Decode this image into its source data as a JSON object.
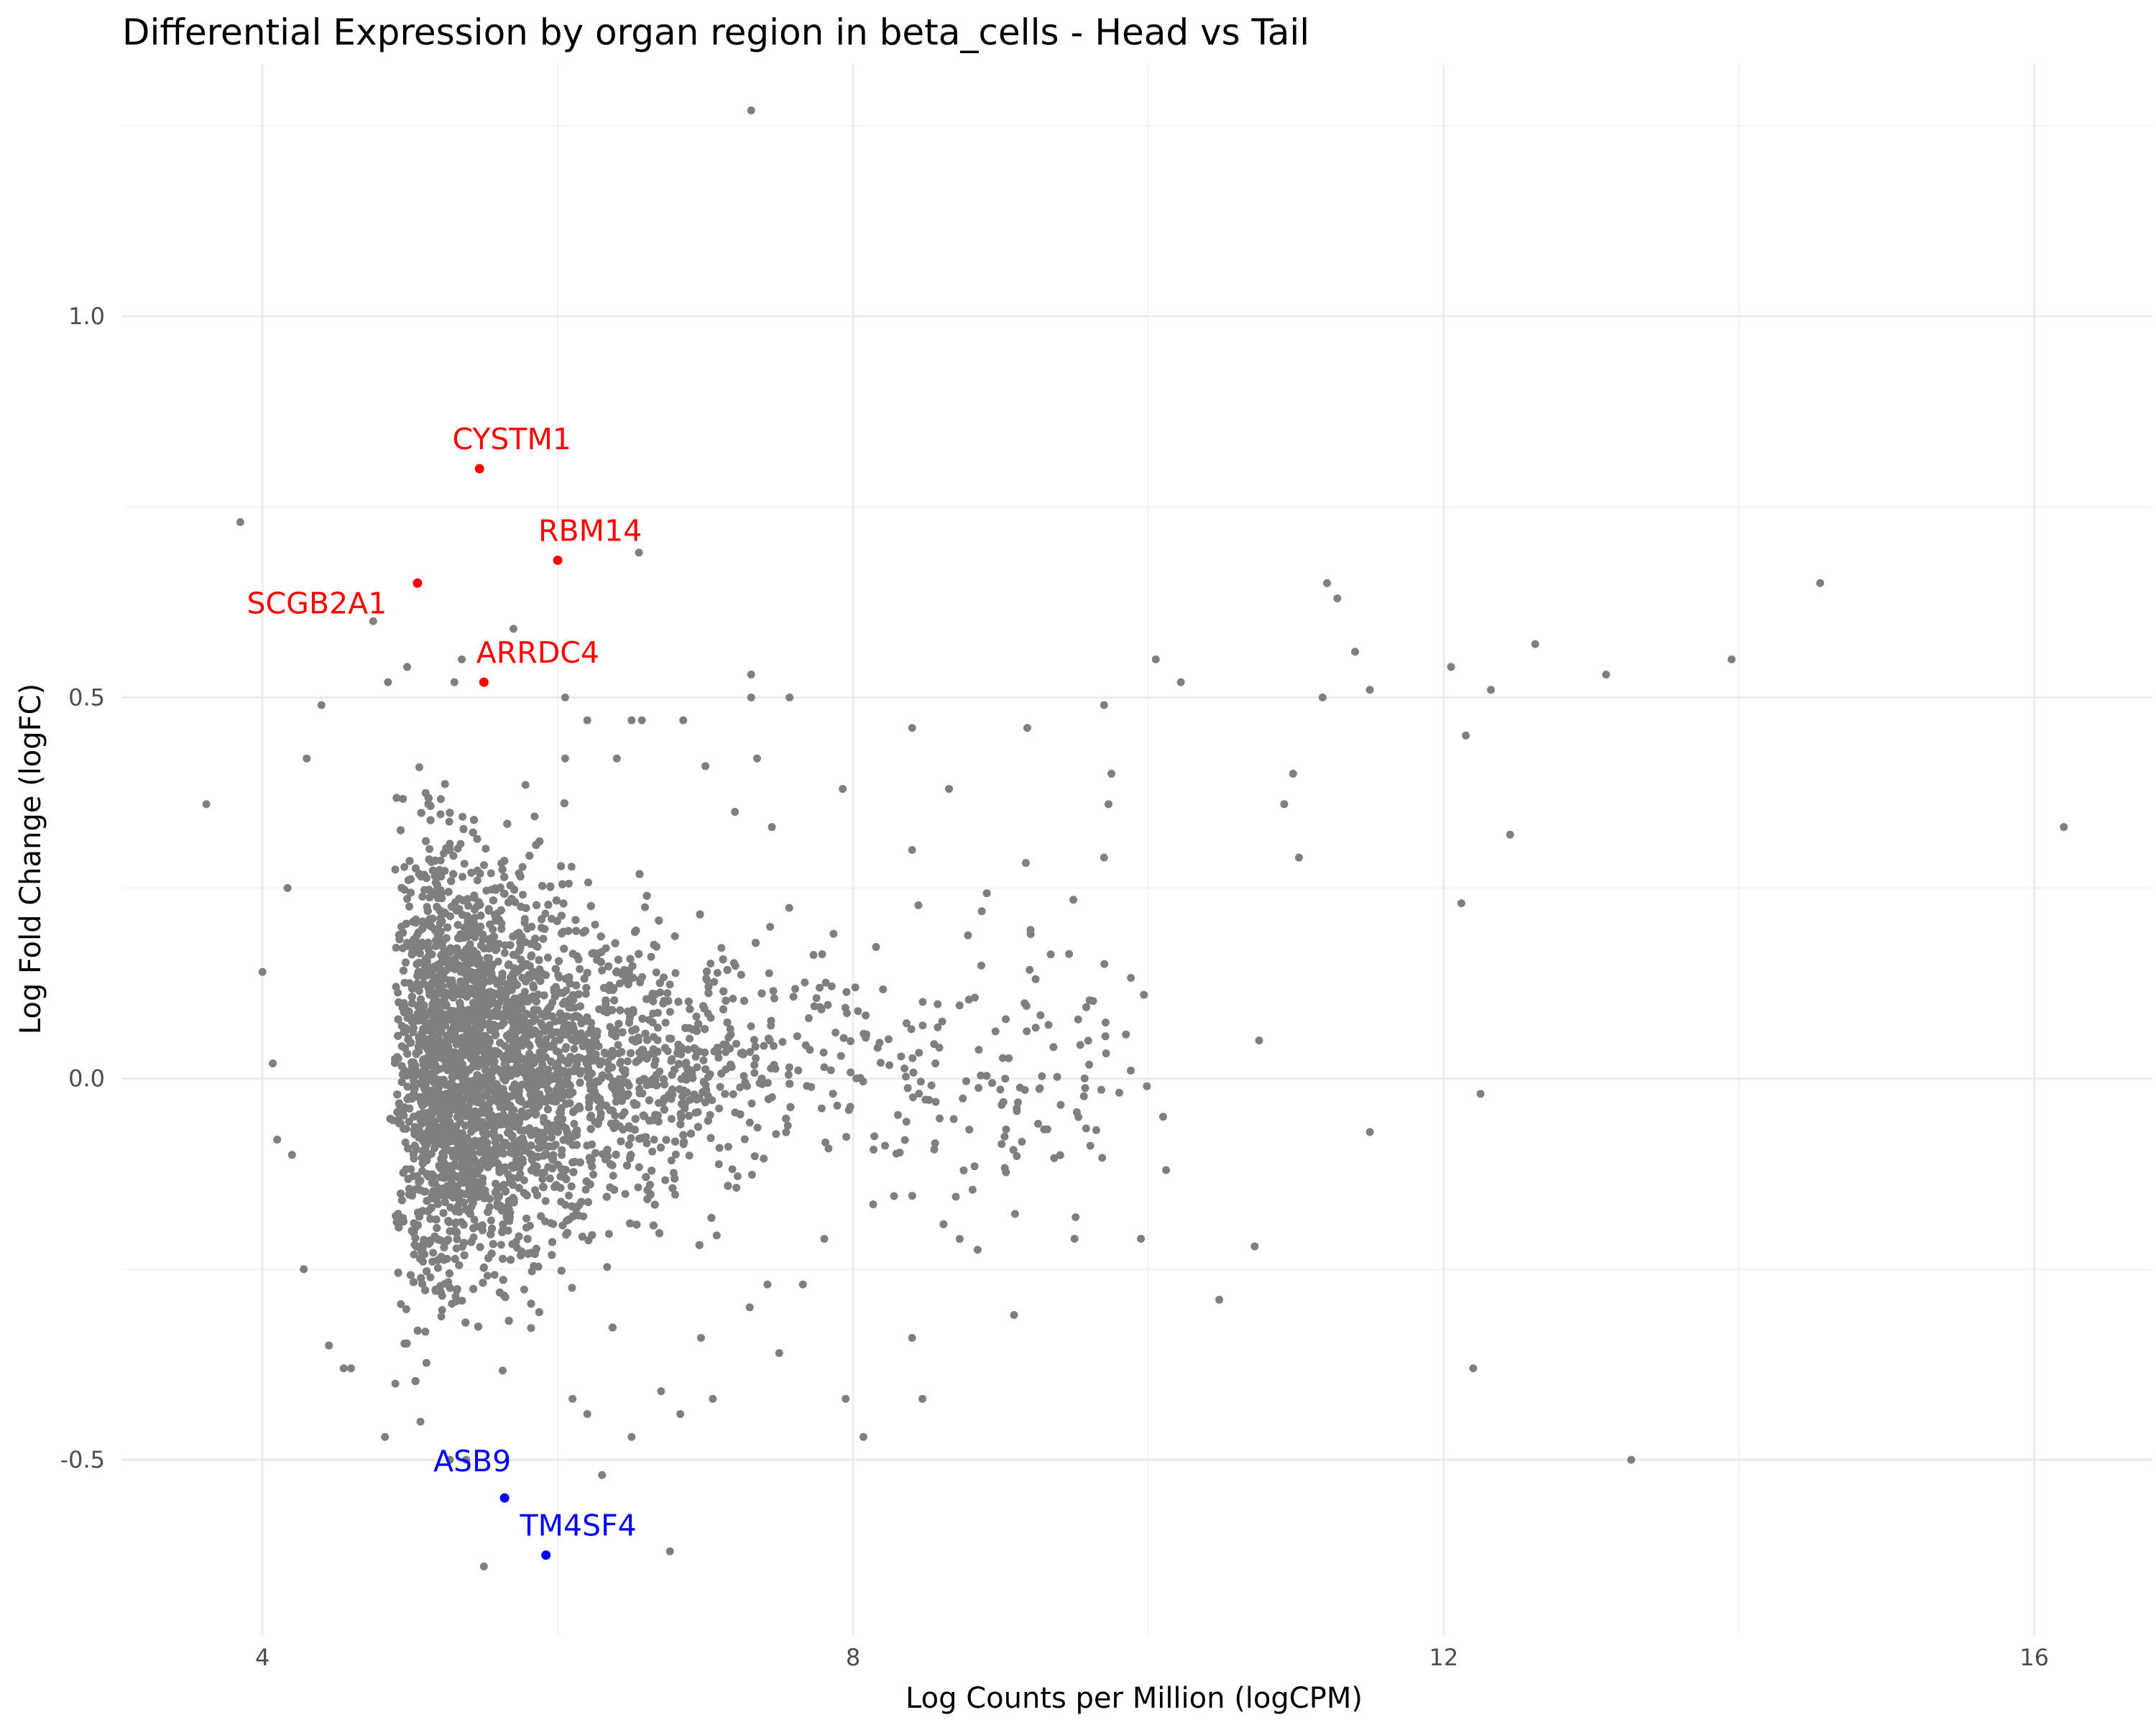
{
  "chart_data": {
    "type": "scatter",
    "title": "Differential Expression by organ region in beta_cells - Head vs Tail",
    "xlabel": "Log Counts per Million (logCPM)",
    "ylabel": "Log Fold Change (logFC)",
    "xlim": [
      3.05,
      16.8
    ],
    "ylim": [
      -0.73,
      1.33
    ],
    "x_ticks": [
      4,
      8,
      12,
      16
    ],
    "x_tick_labels": [
      "4",
      "8",
      "12",
      "16"
    ],
    "y_ticks": [
      -0.5,
      0.0,
      0.5,
      1.0
    ],
    "y_tick_labels": [
      "-0.5",
      "0.0",
      "0.5",
      "1.0"
    ],
    "grid": true,
    "colors": {
      "background": "#ffffff",
      "points": "#7f7f7f",
      "up": "#ff0000",
      "down": "#0000ff",
      "grid": "#ebebeb"
    },
    "bulk_cloud": {
      "x_min": 4.6,
      "x_max": 7.6,
      "y_min": -0.4,
      "y_max": 0.42,
      "density_peak_x": 5.2
    },
    "highlighted_genes": [
      {
        "gene": "CYSTM1",
        "x": 5.47,
        "y": 0.8,
        "direction": "up"
      },
      {
        "gene": "RBM14",
        "x": 6.0,
        "y": 0.68,
        "direction": "up"
      },
      {
        "gene": "SCGB2A1",
        "x": 5.05,
        "y": 0.65,
        "direction": "up"
      },
      {
        "gene": "ARRDC4",
        "x": 5.5,
        "y": 0.52,
        "direction": "up"
      },
      {
        "gene": "ASB9",
        "x": 5.64,
        "y": -0.55,
        "direction": "down"
      },
      {
        "gene": "TM4SF4",
        "x": 5.92,
        "y": -0.625,
        "direction": "down"
      }
    ],
    "background_points": [
      [
        7.31,
        1.27
      ],
      [
        3.85,
        0.73
      ],
      [
        3.62,
        0.36
      ],
      [
        6.55,
        0.69
      ],
      [
        5.7,
        0.59
      ],
      [
        4.75,
        0.6
      ],
      [
        10.05,
        0.55
      ],
      [
        10.22,
        0.52
      ],
      [
        11.21,
        0.65
      ],
      [
        11.28,
        0.63
      ],
      [
        11.4,
        0.56
      ],
      [
        11.5,
        0.51
      ],
      [
        12.05,
        0.54
      ],
      [
        12.32,
        0.51
      ],
      [
        12.62,
        0.57
      ],
      [
        13.1,
        0.53
      ],
      [
        13.95,
        0.55
      ],
      [
        14.55,
        0.65
      ],
      [
        11.18,
        0.5
      ],
      [
        10.98,
        0.4
      ],
      [
        10.92,
        0.36
      ],
      [
        11.02,
        0.29
      ],
      [
        12.15,
        0.45
      ],
      [
        12.45,
        0.32
      ],
      [
        12.12,
        0.23
      ],
      [
        16.2,
        0.33
      ],
      [
        10.75,
        0.05
      ],
      [
        11.5,
        -0.07
      ],
      [
        12.25,
        -0.02
      ],
      [
        12.2,
        -0.38
      ],
      [
        13.27,
        -0.5
      ],
      [
        10.72,
        -0.22
      ],
      [
        10.48,
        -0.29
      ],
      [
        9.99,
        -0.01
      ],
      [
        10.1,
        -0.05
      ],
      [
        10.12,
        -0.12
      ],
      [
        9.95,
        -0.21
      ],
      [
        9.5,
        -0.21
      ],
      [
        9.09,
        -0.31
      ],
      [
        9.7,
        0.49
      ],
      [
        9.75,
        0.4
      ],
      [
        9.73,
        0.36
      ],
      [
        9.7,
        0.29
      ],
      [
        9.97,
        0.11
      ],
      [
        9.18,
        0.46
      ],
      [
        8.4,
        0.46
      ],
      [
        8.65,
        0.38
      ],
      [
        8.4,
        0.3
      ],
      [
        7.93,
        0.38
      ],
      [
        7.57,
        0.5
      ],
      [
        7.31,
        0.53
      ],
      [
        7.31,
        0.5
      ],
      [
        7.35,
        0.42
      ],
      [
        7.45,
        0.33
      ],
      [
        7.2,
        0.35
      ],
      [
        7.0,
        0.41
      ],
      [
        6.85,
        0.47
      ],
      [
        6.57,
        0.47
      ],
      [
        6.97,
        -0.34
      ],
      [
        7.3,
        -0.3
      ],
      [
        7.5,
        -0.36
      ],
      [
        7.42,
        -0.27
      ],
      [
        7.66,
        -0.27
      ],
      [
        7.95,
        -0.42
      ],
      [
        8.07,
        -0.47
      ],
      [
        8.4,
        -0.34
      ],
      [
        8.47,
        -0.42
      ],
      [
        6.7,
        -0.41
      ],
      [
        6.83,
        -0.44
      ],
      [
        7.05,
        -0.42
      ],
      [
        6.76,
        -0.62
      ],
      [
        5.38,
        -0.5
      ],
      [
        5.27,
        -0.5
      ],
      [
        5.5,
        -0.64
      ],
      [
        5.07,
        -0.45
      ],
      [
        4.83,
        -0.47
      ],
      [
        4.55,
        -0.38
      ],
      [
        4.9,
        -0.4
      ],
      [
        6.2,
        -0.44
      ],
      [
        6.5,
        -0.47
      ],
      [
        6.3,
        -0.52
      ],
      [
        6.1,
        -0.42
      ],
      [
        4.0,
        0.14
      ],
      [
        4.07,
        0.02
      ],
      [
        4.1,
        -0.08
      ],
      [
        4.2,
        -0.1
      ],
      [
        4.3,
        0.42
      ],
      [
        4.4,
        0.49
      ],
      [
        4.17,
        0.25
      ],
      [
        4.28,
        -0.25
      ],
      [
        4.45,
        -0.35
      ],
      [
        4.6,
        -0.38
      ],
      [
        4.98,
        0.54
      ],
      [
        4.85,
        0.52
      ],
      [
        5.3,
        0.52
      ],
      [
        5.35,
        0.55
      ],
      [
        6.05,
        0.5
      ],
      [
        6.2,
        0.47
      ],
      [
        6.5,
        0.47
      ],
      [
        6.05,
        0.42
      ],
      [
        6.4,
        0.42
      ]
    ]
  }
}
